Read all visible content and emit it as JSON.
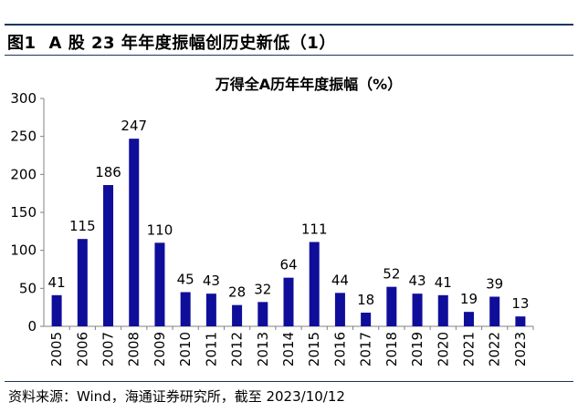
{
  "figure": {
    "number": "图1",
    "title": "A 股 23 年年度振幅创历史新低（1）"
  },
  "source": "资料来源：Wind，海通证券研究所，截至 2023/10/12",
  "chart_data": {
    "type": "bar",
    "title": "万得全A历年年度振幅（%）",
    "categories": [
      "2005",
      "2006",
      "2007",
      "2008",
      "2009",
      "2010",
      "2011",
      "2012",
      "2013",
      "2014",
      "2015",
      "2016",
      "2017",
      "2018",
      "2019",
      "2020",
      "2021",
      "2022",
      "2023"
    ],
    "values": [
      41,
      115,
      186,
      247,
      110,
      45,
      43,
      28,
      32,
      64,
      111,
      44,
      18,
      52,
      43,
      41,
      19,
      39,
      13
    ],
    "data_labels": [
      "41",
      "115",
      "186",
      "247",
      "110",
      "45",
      "43",
      "28",
      "32",
      "64",
      "111",
      "44",
      "18",
      "52",
      "43",
      "41",
      "19",
      "39",
      "13"
    ],
    "ylim": [
      0,
      300
    ],
    "yticks": [
      "0",
      "50",
      "100",
      "150",
      "200",
      "250",
      "300"
    ],
    "bar_color": "#0f0e9a",
    "grid": false,
    "legend": "none"
  }
}
